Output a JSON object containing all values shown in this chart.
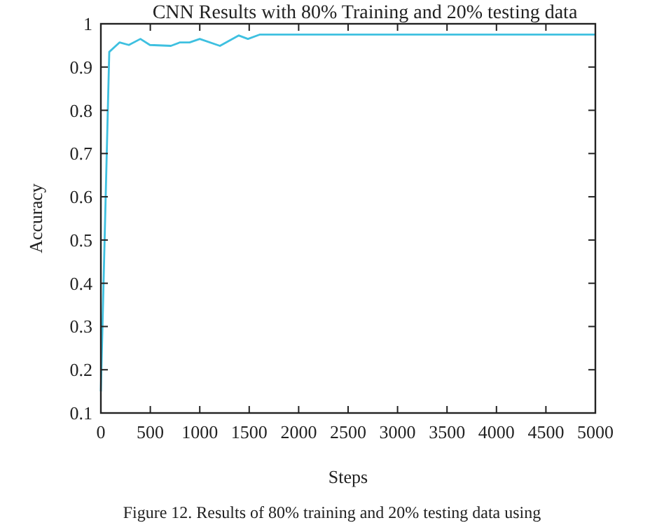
{
  "chart_data": {
    "type": "line",
    "title": "CNN Results with 80% Training and 20% testing data",
    "xlabel": "Steps",
    "ylabel": "Accuracy",
    "annotations": [
      "Figure 12. Results of 80% training and 20% testing data using"
    ],
    "x": [
      0,
      85,
      190,
      283,
      400,
      496,
      708,
      800,
      897,
      1000,
      1204,
      1393,
      1487,
      1605,
      5000
    ],
    "series": [
      {
        "color": "#3ec0e0",
        "values": [
          0.15,
          0.935,
          0.957,
          0.951,
          0.965,
          0.951,
          0.949,
          0.957,
          0.957,
          0.965,
          0.949,
          0.973,
          0.965,
          0.975,
          0.975
        ]
      }
    ],
    "xlim": [
      0,
      5000
    ],
    "xticks": [
      0,
      500,
      1000,
      1500,
      2000,
      2500,
      3000,
      3500,
      4000,
      4500,
      5000
    ],
    "ylim": [
      0.1,
      1
    ],
    "yticks": [
      0.1,
      0.2,
      0.3,
      0.4,
      0.5,
      0.6,
      0.7,
      0.8,
      0.9,
      1
    ],
    "grid": false,
    "marker": "none",
    "line_style": "solid"
  }
}
